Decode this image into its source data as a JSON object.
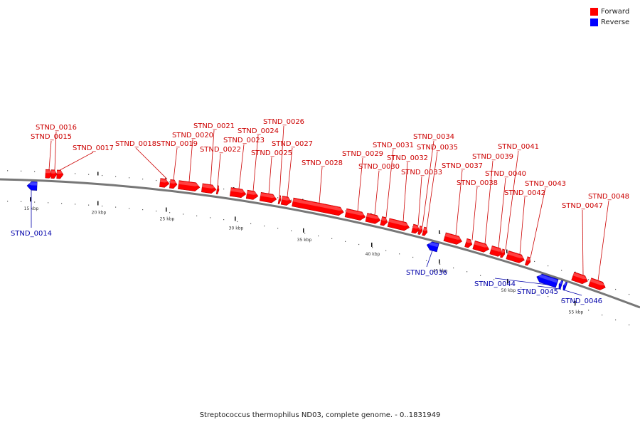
{
  "caption": "Streptococcus thermophilus ND03, complete genome. - 0..1831949",
  "legend": [
    {
      "label": "Forward",
      "color": "#ff0000"
    },
    {
      "label": "Reverse",
      "color": "#0000ff"
    }
  ],
  "colors": {
    "forward_label": "#cc0000",
    "reverse_label": "#0000aa",
    "backbone": "#777777"
  },
  "scale_labels": [
    "15 kbp",
    "20 kbp",
    "25 kbp",
    "30 kbp",
    "35 kbp",
    "40 kbp",
    "45 kbp",
    "50 kbp",
    "55 kbp"
  ],
  "genes": [
    {
      "name": "STND_0014",
      "strand": "reverse"
    },
    {
      "name": "STND_0015",
      "strand": "forward"
    },
    {
      "name": "STND_0016",
      "strand": "forward"
    },
    {
      "name": "STND_0017",
      "strand": "forward"
    },
    {
      "name": "STND_0018",
      "strand": "forward"
    },
    {
      "name": "STND_0019",
      "strand": "forward"
    },
    {
      "name": "STND_0020",
      "strand": "forward"
    },
    {
      "name": "STND_0021",
      "strand": "forward"
    },
    {
      "name": "STND_0022",
      "strand": "forward"
    },
    {
      "name": "STND_0023",
      "strand": "forward"
    },
    {
      "name": "STND_0024",
      "strand": "forward"
    },
    {
      "name": "STND_0025",
      "strand": "forward"
    },
    {
      "name": "STND_0026",
      "strand": "forward"
    },
    {
      "name": "STND_0027",
      "strand": "forward"
    },
    {
      "name": "STND_0028",
      "strand": "forward"
    },
    {
      "name": "STND_0029",
      "strand": "forward"
    },
    {
      "name": "STND_0030",
      "strand": "forward"
    },
    {
      "name": "STND_0031",
      "strand": "forward"
    },
    {
      "name": "STND_0032",
      "strand": "forward"
    },
    {
      "name": "STND_0033",
      "strand": "forward"
    },
    {
      "name": "STND_0034",
      "strand": "forward"
    },
    {
      "name": "STND_0035",
      "strand": "forward"
    },
    {
      "name": "STND_0036",
      "strand": "reverse"
    },
    {
      "name": "STND_0037",
      "strand": "forward"
    },
    {
      "name": "STND_0038",
      "strand": "forward"
    },
    {
      "name": "STND_0039",
      "strand": "forward"
    },
    {
      "name": "STND_0040",
      "strand": "forward"
    },
    {
      "name": "STND_0041",
      "strand": "forward"
    },
    {
      "name": "STND_0042",
      "strand": "forward"
    },
    {
      "name": "STND_0043",
      "strand": "forward"
    },
    {
      "name": "STND_0044",
      "strand": "reverse"
    },
    {
      "name": "STND_0045",
      "strand": "reverse"
    },
    {
      "name": "STND_0046",
      "strand": "reverse"
    },
    {
      "name": "STND_0047",
      "strand": "forward"
    },
    {
      "name": "STND_0048",
      "strand": "forward"
    }
  ]
}
